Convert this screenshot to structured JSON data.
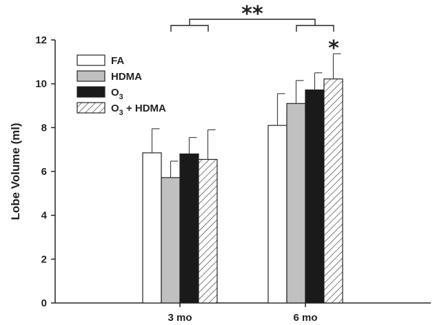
{
  "chart_data": {
    "type": "bar",
    "categories": [
      "3 mo",
      "6 mo"
    ],
    "series": [
      {
        "name": "FA",
        "values": [
          6.85,
          8.1
        ],
        "errors": [
          1.1,
          1.45
        ],
        "fill": "#ffffff",
        "pattern": "none"
      },
      {
        "name": "HDMA",
        "values": [
          5.72,
          9.1
        ],
        "errors": [
          0.75,
          1.05
        ],
        "fill": "#c0c0c0",
        "pattern": "none"
      },
      {
        "name": "O3",
        "values": [
          6.8,
          9.72
        ],
        "errors": [
          0.75,
          0.78
        ],
        "fill": "#1a1a1a",
        "pattern": "none"
      },
      {
        "name": "O3 + HDMA",
        "values": [
          6.55,
          10.22
        ],
        "errors": [
          1.35,
          1.15
        ],
        "fill": "#ffffff",
        "pattern": "diagonal-hatch"
      }
    ],
    "legend_labels": [
      {
        "main": "FA",
        "sub": "",
        "suffix": ""
      },
      {
        "main": "HDMA",
        "sub": "",
        "suffix": ""
      },
      {
        "main": "O",
        "sub": "3",
        "suffix": ""
      },
      {
        "main": "O",
        "sub": "3",
        "suffix": " + HDMA"
      }
    ],
    "ylabel": "Lobe Volume (ml)",
    "xlabel": "",
    "ylim": [
      0,
      12
    ],
    "yticks": [
      "0",
      "2",
      "4",
      "6",
      "8",
      "10",
      "12"
    ],
    "grid": false,
    "legend_position": "top-left",
    "annotations": {
      "group_comparison": "**",
      "single_bar": "*"
    }
  }
}
